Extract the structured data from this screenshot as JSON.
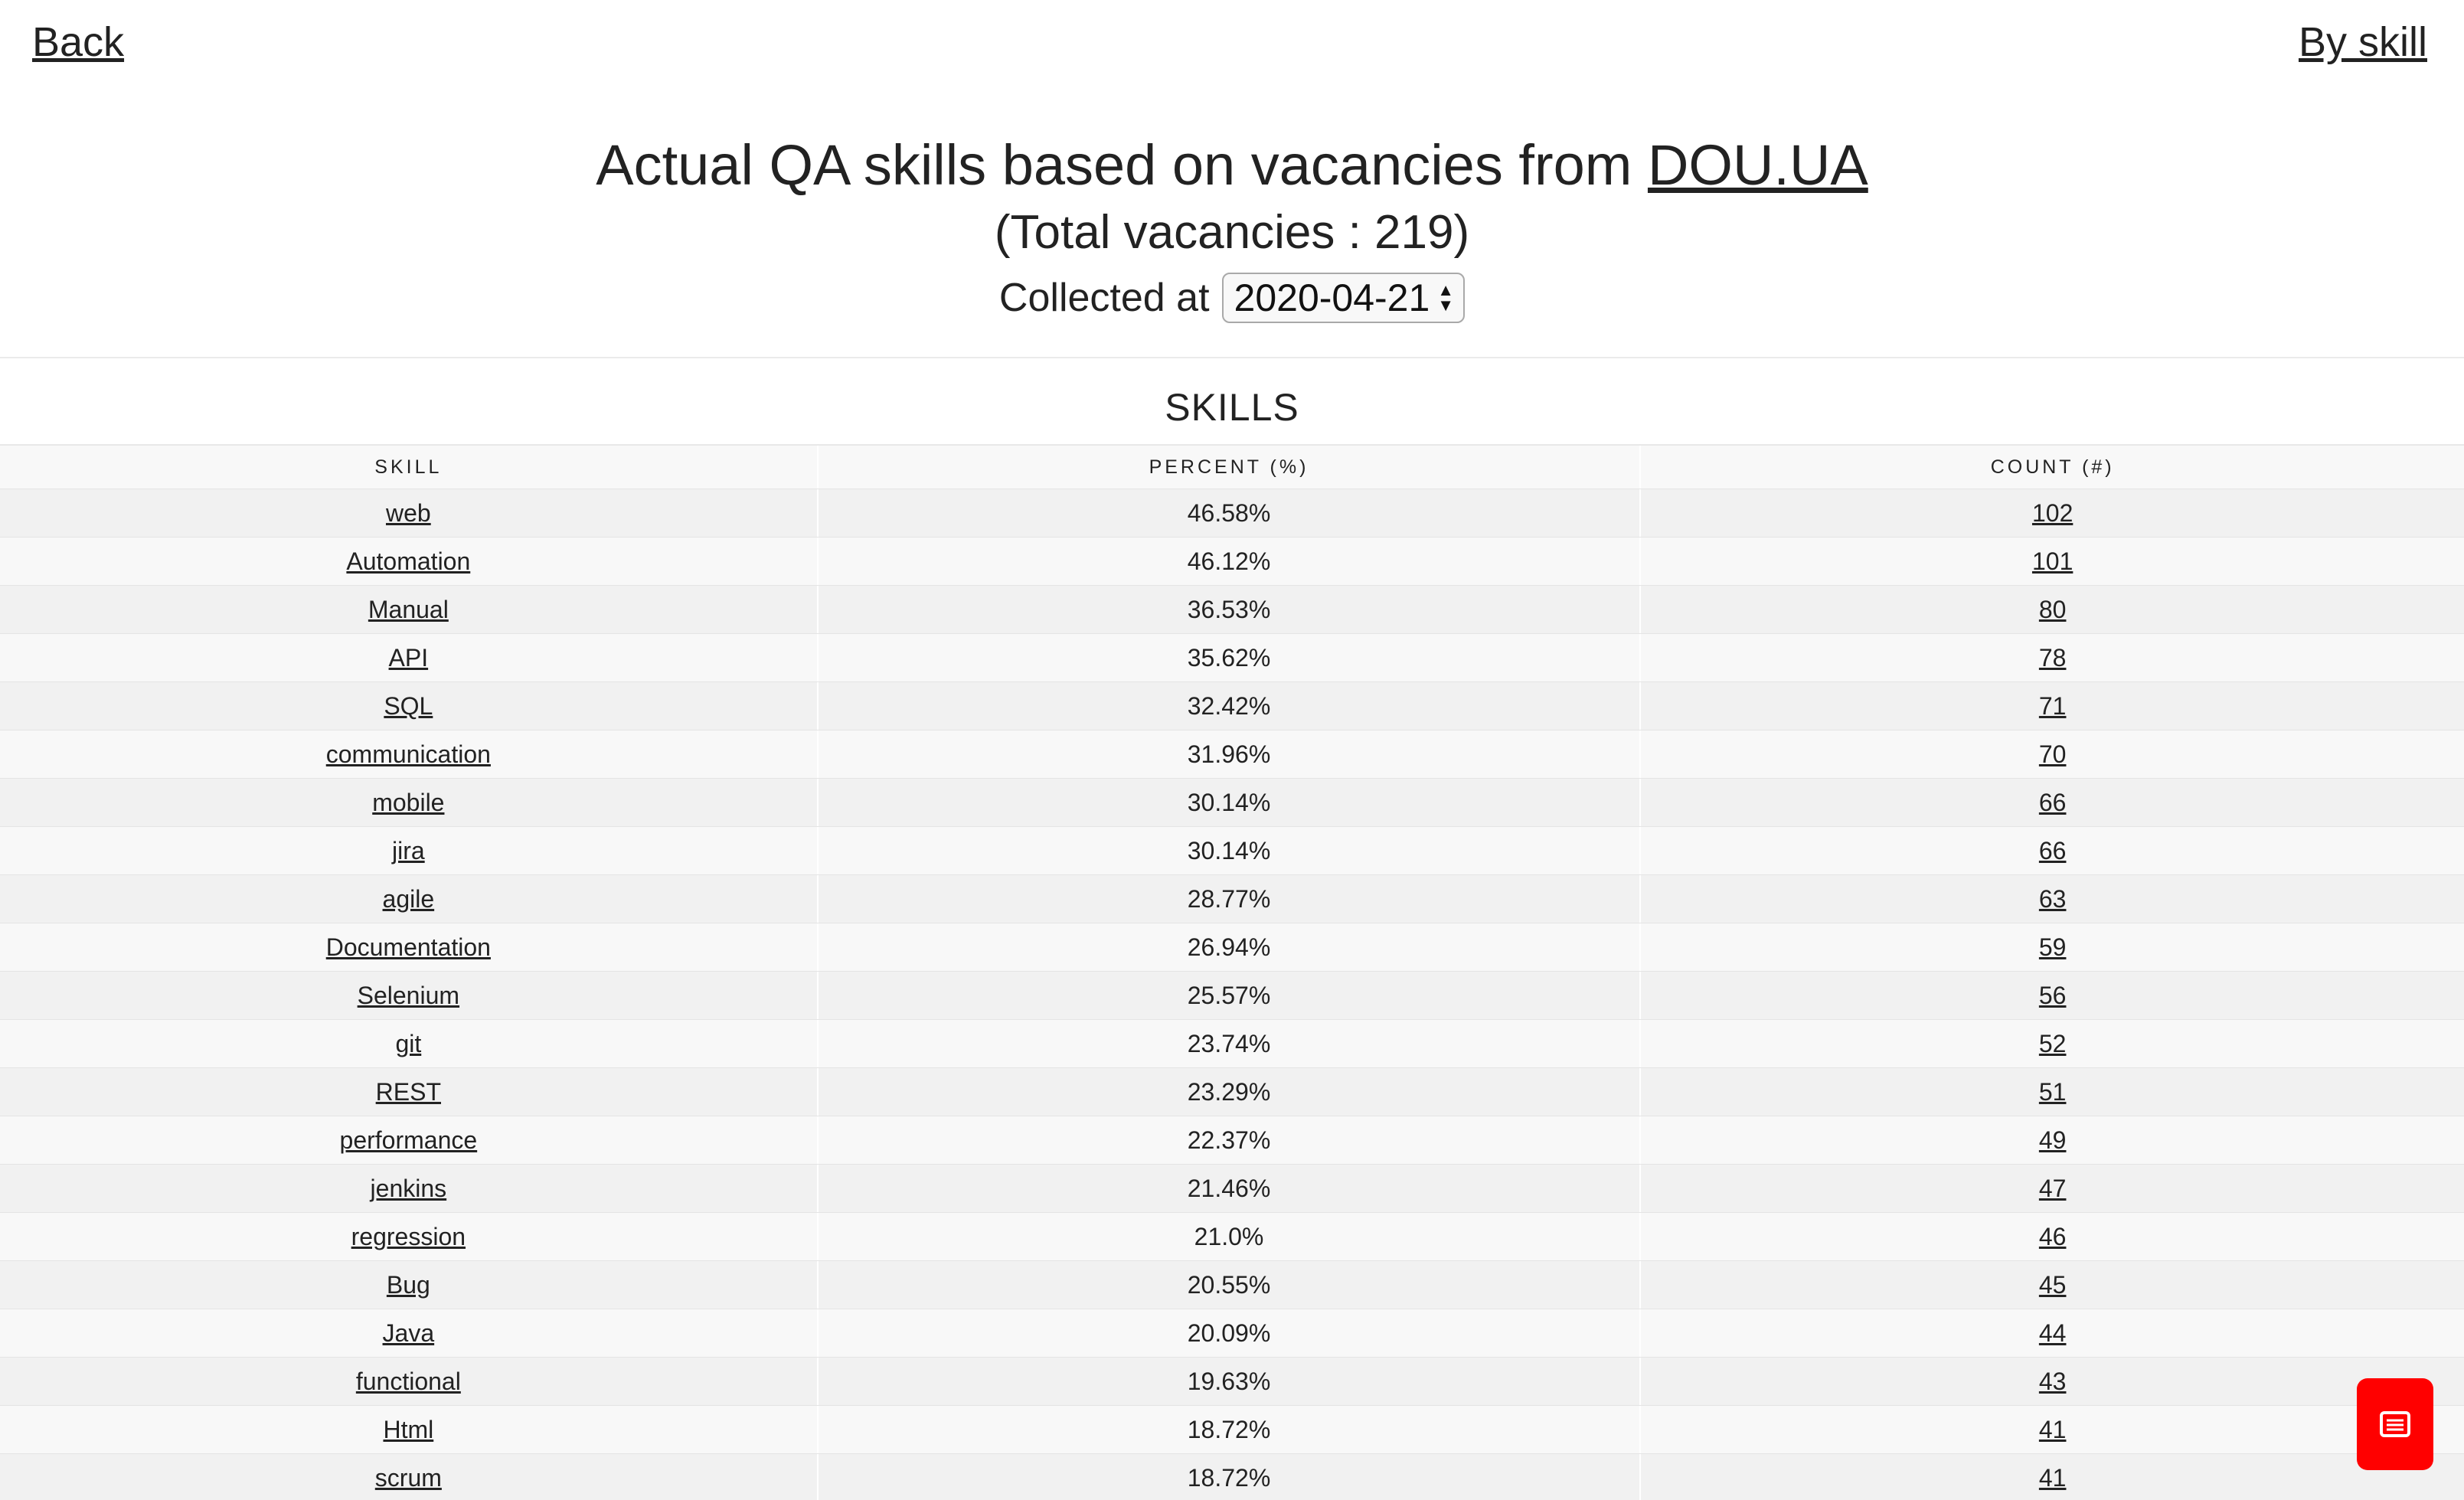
{
  "nav": {
    "back": "Back",
    "by_skill": "By skill"
  },
  "header": {
    "title_prefix": "Actual QA skills based on vacancies from ",
    "title_link": "DOU.UA",
    "subtitle": "(Total vacancies : 219)",
    "collected_label": "Collected at",
    "collected_date": "2020-04-21"
  },
  "section": {
    "title": "SKILLS"
  },
  "table": {
    "headers": [
      "SKILL",
      "PERCENT (%)",
      "COUNT (#)"
    ],
    "rows": [
      [
        "web",
        "46.58%",
        "102"
      ],
      [
        "Automation",
        "46.12%",
        "101"
      ],
      [
        "Manual",
        "36.53%",
        "80"
      ],
      [
        "API",
        "35.62%",
        "78"
      ],
      [
        "SQL",
        "32.42%",
        "71"
      ],
      [
        "communication",
        "31.96%",
        "70"
      ],
      [
        "mobile",
        "30.14%",
        "66"
      ],
      [
        "jira",
        "30.14%",
        "66"
      ],
      [
        "agile",
        "28.77%",
        "63"
      ],
      [
        "Documentation",
        "26.94%",
        "59"
      ],
      [
        "Selenium",
        "25.57%",
        "56"
      ],
      [
        "git",
        "23.74%",
        "52"
      ],
      [
        "REST",
        "23.29%",
        "51"
      ],
      [
        "performance",
        "22.37%",
        "49"
      ],
      [
        "jenkins",
        "21.46%",
        "47"
      ],
      [
        "regression",
        "21.0%",
        "46"
      ],
      [
        "Bug",
        "20.55%",
        "45"
      ],
      [
        "Java",
        "20.09%",
        "44"
      ],
      [
        "functional",
        "19.63%",
        "43"
      ],
      [
        "Html",
        "18.72%",
        "41"
      ],
      [
        "scrum",
        "18.72%",
        "41"
      ]
    ]
  },
  "fab": {
    "icon": "message-list-icon",
    "color": "#ff0000"
  }
}
